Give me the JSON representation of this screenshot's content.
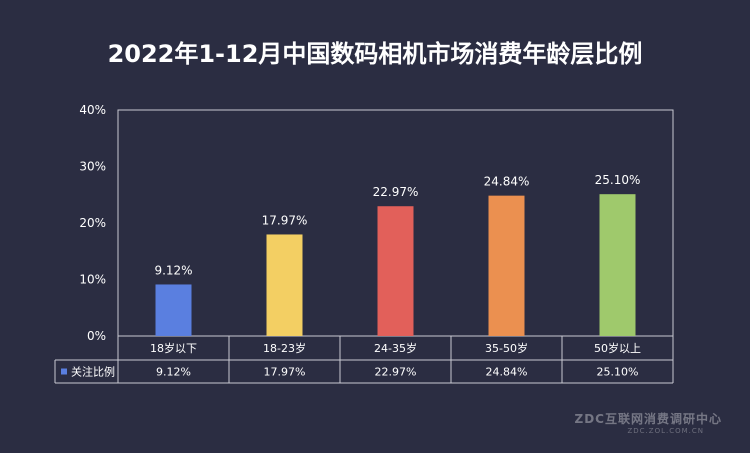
{
  "chart_data": {
    "type": "bar",
    "title": "2022年1-12月中国数码相机市场消费年龄层比例",
    "categories": [
      "18岁以下",
      "18-23岁",
      "24-35岁",
      "35-50岁",
      "50岁以上"
    ],
    "series": [
      {
        "name": "关注比例",
        "values": [
          9.12,
          17.97,
          22.97,
          24.84,
          25.1
        ],
        "labels": [
          "9.12%",
          "17.97%",
          "22.97%",
          "24.84%",
          "25.10%"
        ],
        "colors": [
          "#5a7fe0",
          "#f3cf63",
          "#e2605a",
          "#eb9050",
          "#9fc96c"
        ]
      }
    ],
    "ylim": [
      0,
      40
    ],
    "yticks": [
      "0%",
      "10%",
      "20%",
      "30%",
      "40%"
    ],
    "legend_color": "#5a7fe0",
    "data_table": true
  },
  "watermark": {
    "main": "ZDC互联网消费调研中心",
    "sub": "ZDC.ZOL.COM.CN"
  }
}
